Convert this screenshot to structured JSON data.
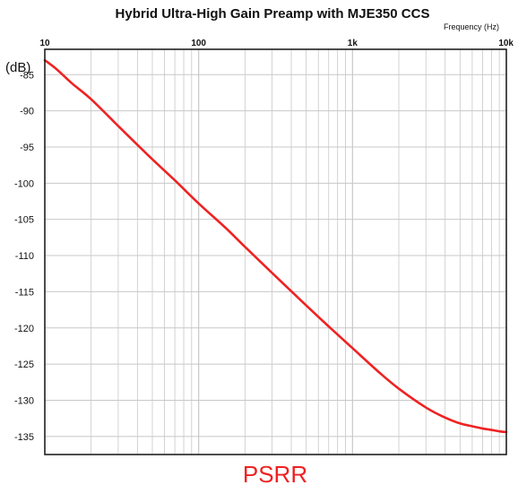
{
  "chart_data": {
    "type": "line",
    "title": "Hybrid Ultra-High Gain Preamp with MJE350 CCS",
    "xlabel": "Frequency   (Hz)",
    "ylabel": "(dB)",
    "xscale": "log",
    "xlim": [
      10,
      10000
    ],
    "ylim": [
      -137.5,
      -81.5
    ],
    "xticks": [
      {
        "value": 10,
        "label": "10"
      },
      {
        "value": 100,
        "label": "100"
      },
      {
        "value": 1000,
        "label": "1k"
      },
      {
        "value": 10000,
        "label": "10k"
      }
    ],
    "yticks": [
      {
        "value": -85,
        "label": "-85"
      },
      {
        "value": -90,
        "label": "-90"
      },
      {
        "value": -95,
        "label": "-95"
      },
      {
        "value": -100,
        "label": "-100"
      },
      {
        "value": -105,
        "label": "-105"
      },
      {
        "value": -110,
        "label": "-110"
      },
      {
        "value": -115,
        "label": "-115"
      },
      {
        "value": -120,
        "label": "-120"
      },
      {
        "value": -125,
        "label": "-125"
      },
      {
        "value": -130,
        "label": "-130"
      },
      {
        "value": -135,
        "label": "-135"
      }
    ],
    "grid": true,
    "series": [
      {
        "name": "PSRR",
        "color": "#ee2222",
        "x": [
          10,
          12,
          15,
          20,
          30,
          40,
          50,
          70,
          100,
          150,
          200,
          300,
          500,
          700,
          1000,
          1500,
          2000,
          3000,
          4000,
          5000,
          6000,
          7000,
          8000,
          9000,
          10000
        ],
        "y": [
          -83.0,
          -84.3,
          -86.2,
          -88.4,
          -92.1,
          -94.7,
          -96.7,
          -99.6,
          -102.8,
          -106.2,
          -108.8,
          -112.4,
          -116.9,
          -119.8,
          -122.8,
          -126.2,
          -128.4,
          -131.0,
          -132.4,
          -133.2,
          -133.6,
          -133.9,
          -134.1,
          -134.3,
          -134.4
        ]
      }
    ]
  },
  "footer_label": "PSRR",
  "colors": {
    "curve": "#ee2222",
    "footer": "#ee2222",
    "grid": "#c8c8c8",
    "frame": "#111111"
  }
}
